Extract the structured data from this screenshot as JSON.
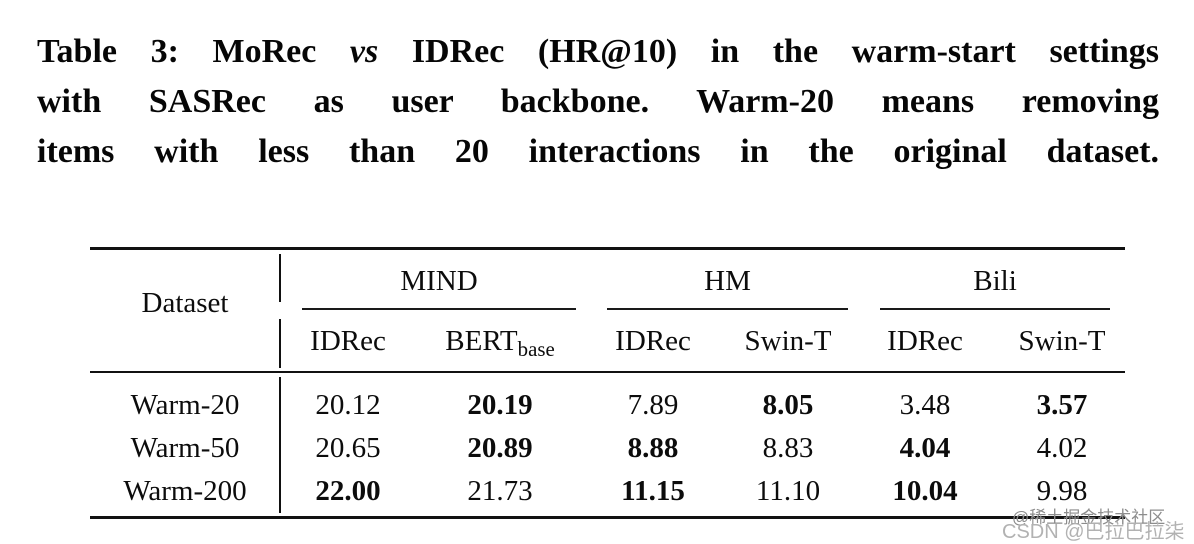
{
  "caption": {
    "line1": {
      "pre": "Table 3: MoRec ",
      "italic": "vs",
      "post": " IDRec (HR@10) in the warm-start settings"
    },
    "line2": "with SASRec as user backbone. Warm-20 means removing",
    "line3": "items with less than 20 interactions in the original dataset."
  },
  "table": {
    "corner_label": "Dataset",
    "groups": [
      {
        "label": "MIND"
      },
      {
        "label": "HM"
      },
      {
        "label": "Bili"
      }
    ],
    "sub_columns": [
      {
        "text": "IDRec",
        "subscript": ""
      },
      {
        "text": "BERT",
        "subscript": "base"
      },
      {
        "text": "IDRec",
        "subscript": ""
      },
      {
        "text": "Swin-T",
        "subscript": ""
      },
      {
        "text": "IDRec",
        "subscript": ""
      },
      {
        "text": "Swin-T",
        "subscript": ""
      }
    ],
    "rows": [
      {
        "label": "Warm-20",
        "cells": [
          {
            "value": "20.12",
            "style": ""
          },
          {
            "value": "20.19",
            "style": "bold"
          },
          {
            "value": "7.89",
            "style": ""
          },
          {
            "value": "8.05",
            "style": "bold"
          },
          {
            "value": "3.48",
            "style": ""
          },
          {
            "value": "3.57",
            "style": "bold"
          }
        ]
      },
      {
        "label": "Warm-50",
        "cells": [
          {
            "value": "20.65",
            "style": ""
          },
          {
            "value": "20.89",
            "style": "bold"
          },
          {
            "value": "8.88",
            "style": "bold"
          },
          {
            "value": "8.83",
            "style": ""
          },
          {
            "value": "4.04",
            "style": "bold"
          },
          {
            "value": "4.02",
            "style": ""
          }
        ]
      },
      {
        "label": "Warm-200",
        "cells": [
          {
            "value": "22.00",
            "style": "bold"
          },
          {
            "value": "21.73",
            "style": ""
          },
          {
            "value": "11.15",
            "style": "bold"
          },
          {
            "value": "11.10",
            "style": ""
          },
          {
            "value": "10.04",
            "style": "bold"
          },
          {
            "value": "9.98",
            "style": ""
          }
        ]
      }
    ]
  },
  "watermarks": {
    "juejin": "@稀土掘金技术社区",
    "csdn": "CSDN @巴拉巴拉柒"
  },
  "colors": {
    "background": "#ffffff",
    "text": "#0b0b0b",
    "rule": "#111111",
    "watermark_dark": "#8d8d8d",
    "watermark_light": "#b2b2b2"
  }
}
